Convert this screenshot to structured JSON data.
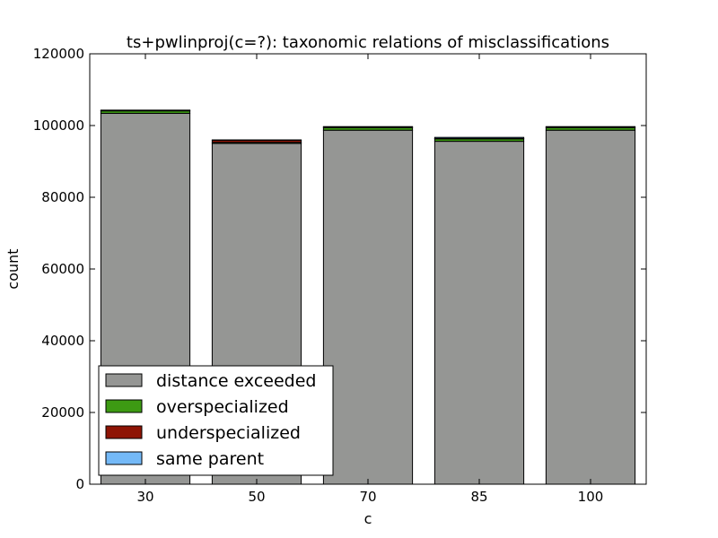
{
  "chart_data": {
    "type": "bar",
    "stacked": true,
    "title": "ts+pwlinproj(c=?): taxonomic relations of misclassifications",
    "xlabel": "c",
    "ylabel": "count",
    "categories": [
      "30",
      "50",
      "70",
      "85",
      "100"
    ],
    "ylim": [
      0,
      120000
    ],
    "yticks": [
      0,
      20000,
      40000,
      60000,
      80000,
      100000,
      120000
    ],
    "grid": false,
    "legend_position": "lower-left",
    "series": [
      {
        "name": "distance exceeded",
        "color": "#959694",
        "values": [
          103400,
          95000,
          98700,
          95600,
          98700
        ]
      },
      {
        "name": "overspecialized",
        "color": "#3d9a13",
        "values": [
          700,
          300,
          700,
          700,
          700
        ]
      },
      {
        "name": "underspecialized",
        "color": "#8e1405",
        "values": [
          100,
          600,
          200,
          100,
          200
        ]
      },
      {
        "name": "same parent",
        "color": "#74b9f7",
        "values": [
          100,
          100,
          100,
          300,
          100
        ]
      }
    ]
  }
}
